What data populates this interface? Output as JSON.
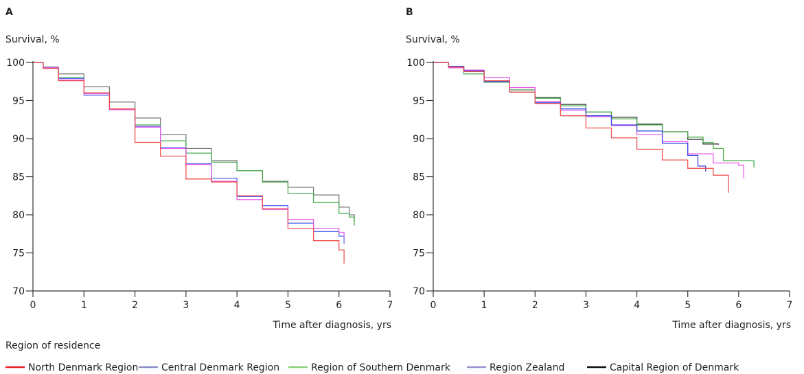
{
  "legend": {
    "title": "Region of residence",
    "entries": [
      {
        "name": "North Denmark Region",
        "color": "#e8202a"
      },
      {
        "name": "Central Denmark Region",
        "color": "#8a8cc4"
      },
      {
        "name": "Region of Southern Denmark",
        "color": "#8ccf7e"
      },
      {
        "name": "Region Zealand",
        "color": "#9b8fd0"
      },
      {
        "name": "Capital Region of Denmark",
        "color": "#111111"
      }
    ]
  },
  "chart_data": [
    {
      "panel": "A",
      "type": "line",
      "title": "A",
      "ylabel": "Survival, %",
      "xlabel": "Time after diagnosis, yrs",
      "xlim": [
        0,
        7
      ],
      "ylim": [
        70,
        100
      ],
      "xticks": [
        0,
        1,
        2,
        3,
        4,
        5,
        6,
        7
      ],
      "yticks": [
        70,
        75,
        80,
        85,
        90,
        95,
        100
      ],
      "grid": false,
      "series": [
        {
          "name": "Capital Region of Denmark",
          "color": "#777777",
          "x": [
            0,
            0.2,
            0.5,
            1,
            1.5,
            2,
            2.5,
            3,
            3.5,
            4,
            4.5,
            5,
            5.5,
            6,
            6.2,
            6.3
          ],
          "y": [
            100,
            99.4,
            98.5,
            96.8,
            94.8,
            92.7,
            90.5,
            88.7,
            87.1,
            85.8,
            84.4,
            83.6,
            82.6,
            81.0,
            80.0,
            79.2
          ]
        },
        {
          "name": "Region of Southern Denmark",
          "color": "#4caf50",
          "x": [
            0,
            0.2,
            0.5,
            1,
            1.5,
            2,
            2.5,
            3,
            3.5,
            4,
            4.5,
            5,
            5.5,
            6,
            6.2,
            6.3
          ],
          "y": [
            100,
            99.3,
            98.0,
            96.0,
            93.9,
            91.8,
            89.7,
            88.1,
            86.9,
            85.8,
            84.3,
            82.8,
            81.6,
            80.2,
            79.7,
            78.6
          ]
        },
        {
          "name": "Central Denmark Region",
          "color": "#5b6ef0",
          "x": [
            0,
            0.2,
            0.5,
            1,
            1.5,
            2,
            2.5,
            3,
            3.5,
            4,
            4.5,
            5,
            5.5,
            6,
            6.1
          ],
          "y": [
            100,
            99.3,
            97.9,
            95.7,
            93.9,
            91.6,
            88.8,
            86.7,
            84.8,
            82.4,
            81.2,
            78.9,
            77.8,
            77.2,
            76.2
          ]
        },
        {
          "name": "Region Zealand",
          "color": "#e85ae8",
          "x": [
            0,
            0.2,
            0.5,
            1,
            1.5,
            2,
            2.5,
            3,
            3.5,
            4,
            4.5,
            5,
            5.5,
            6,
            6.1
          ],
          "y": [
            100,
            99.3,
            97.7,
            95.9,
            93.8,
            91.5,
            88.7,
            86.6,
            84.4,
            82.0,
            80.7,
            79.4,
            78.2,
            77.7,
            77.1
          ]
        },
        {
          "name": "North Denmark Region",
          "color": "#f05050",
          "x": [
            0,
            0.2,
            0.5,
            1,
            1.5,
            2,
            2.5,
            3,
            3.5,
            4,
            4.5,
            5,
            5.5,
            5.8,
            6,
            6.1
          ],
          "y": [
            100,
            99.2,
            97.6,
            96.0,
            93.9,
            89.5,
            87.7,
            84.7,
            84.3,
            82.5,
            80.8,
            78.2,
            76.6,
            76.6,
            75.4,
            73.6
          ]
        }
      ]
    },
    {
      "panel": "B",
      "type": "line",
      "title": "B",
      "ylabel": "Survival, %",
      "xlabel": "Time after diagnosis, yrs",
      "xlim": [
        0,
        7
      ],
      "ylim": [
        70,
        100
      ],
      "xticks": [
        0,
        1,
        2,
        3,
        4,
        5,
        6,
        7
      ],
      "yticks": [
        70,
        75,
        80,
        85,
        90,
        95,
        100
      ],
      "grid": false,
      "series": [
        {
          "name": "Capital Region of Denmark",
          "color": "#333333",
          "x": [
            0,
            0.3,
            0.6,
            1,
            1.5,
            2,
            2.5,
            3,
            3.5,
            4,
            4.5,
            5,
            5.3,
            5.6
          ],
          "y": [
            100,
            99.5,
            98.8,
            97.6,
            96.4,
            95.4,
            94.5,
            93.5,
            92.8,
            91.9,
            90.9,
            89.9,
            89.3,
            89.2
          ]
        },
        {
          "name": "Region of Southern Denmark",
          "color": "#4caf50",
          "x": [
            0,
            0.3,
            0.6,
            1,
            1.5,
            2,
            2.5,
            3,
            3.5,
            4,
            4.5,
            5,
            5.3,
            5.5,
            5.7,
            6,
            6.3
          ],
          "y": [
            100,
            99.3,
            98.5,
            97.4,
            96.4,
            95.3,
            94.3,
            93.5,
            92.6,
            91.8,
            90.9,
            90.2,
            89.5,
            88.7,
            87.1,
            87.1,
            86.2
          ]
        },
        {
          "name": "Region Zealand",
          "color": "#e85ae8",
          "x": [
            0,
            0.3,
            0.6,
            1,
            1.5,
            2,
            2.5,
            3,
            3.5,
            4,
            4.5,
            5,
            5.5,
            6,
            6.1
          ],
          "y": [
            100,
            99.3,
            99.0,
            98.0,
            96.7,
            94.9,
            93.7,
            92.9,
            91.7,
            90.5,
            89.6,
            88.0,
            86.8,
            86.5,
            84.8
          ]
        },
        {
          "name": "Central Denmark Region",
          "color": "#3a46e0",
          "x": [
            0,
            0.3,
            0.6,
            1,
            1.5,
            2,
            2.5,
            3,
            3.5,
            4,
            4.5,
            5,
            5.2,
            5.35
          ],
          "y": [
            100,
            99.5,
            98.9,
            97.5,
            96.1,
            94.7,
            93.9,
            93.0,
            91.8,
            91.0,
            89.4,
            87.8,
            86.4,
            85.7
          ]
        },
        {
          "name": "North Denmark Region",
          "color": "#f05050",
          "x": [
            0,
            0.3,
            0.6,
            1,
            1.5,
            2,
            2.5,
            3,
            3.5,
            4,
            4.5,
            5,
            5.5,
            5.75,
            5.8
          ],
          "y": [
            100,
            99.4,
            98.8,
            97.6,
            96.1,
            94.6,
            93.0,
            91.4,
            90.1,
            88.6,
            87.2,
            86.1,
            85.2,
            85.2,
            82.9
          ]
        }
      ]
    }
  ]
}
